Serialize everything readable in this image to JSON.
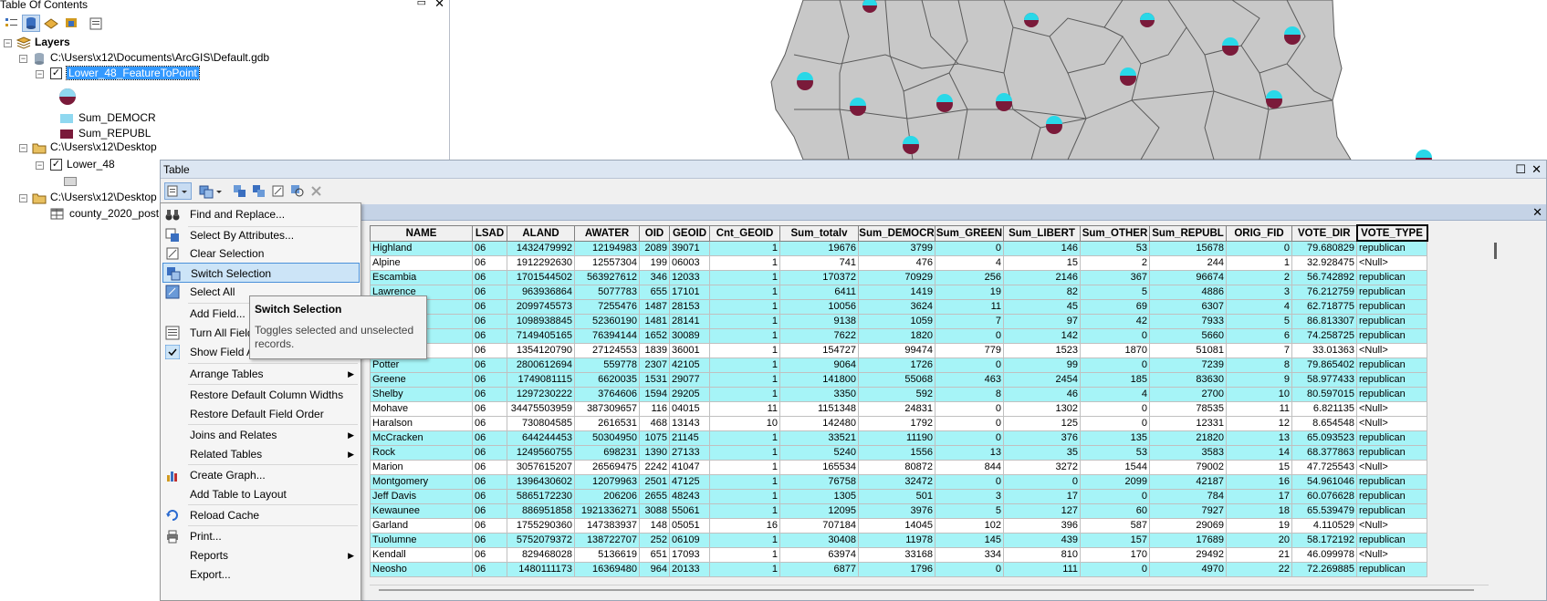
{
  "toc": {
    "title": "Table Of Contents",
    "layers_label": "Layers",
    "gdb_path": "C:\\Users\\x12\\Documents\\ArcGIS\\Default.gdb",
    "feature_layer": "Lower_48_FeatureToPoint",
    "legend_dem": "Sum_DEMOCR",
    "legend_rep": "Sum_REPUBL",
    "folder1": "C:\\Users\\x12\\Desktop",
    "lower48": "Lower_48",
    "folder2": "C:\\Users\\x12\\Desktop",
    "county_table": "county_2020_post",
    "colors": {
      "dem": "#8fd8f0",
      "rep": "#7a1a3a"
    }
  },
  "table_window": {
    "title": "Table"
  },
  "menu": {
    "items": [
      {
        "label": "Find and Replace...",
        "icon": "binoculars-icon"
      },
      {
        "label": "Select By Attributes...",
        "icon": "select-attributes-icon"
      },
      {
        "label": "Clear Selection",
        "icon": "clear-selection-icon"
      },
      {
        "label": "Switch Selection",
        "icon": "switch-selection-icon"
      },
      {
        "label": "Select All",
        "icon": "select-all-icon"
      },
      {
        "label": "Add Field...",
        "icon": ""
      },
      {
        "label": "Turn All Fields On",
        "icon": "fields-on-icon"
      },
      {
        "label": "Show Field Aliases",
        "icon": "checkmark-icon"
      },
      {
        "label": "Arrange Tables",
        "icon": ""
      },
      {
        "label": "Restore Default Column Widths",
        "icon": ""
      },
      {
        "label": "Restore Default Field Order",
        "icon": ""
      },
      {
        "label": "Joins and Relates",
        "icon": ""
      },
      {
        "label": "Related Tables",
        "icon": ""
      },
      {
        "label": "Create Graph...",
        "icon": "graph-icon"
      },
      {
        "label": "Add Table to Layout",
        "icon": ""
      },
      {
        "label": "Reload Cache",
        "icon": "reload-icon"
      },
      {
        "label": "Print...",
        "icon": "printer-icon"
      },
      {
        "label": "Reports",
        "icon": ""
      },
      {
        "label": "Export...",
        "icon": ""
      }
    ]
  },
  "tooltip": {
    "title": "Switch Selection",
    "description": "Toggles selected and unselected records."
  },
  "grid": {
    "columns": [
      "NAME",
      "LSAD",
      "ALAND",
      "AWATER",
      "OID",
      "GEOID",
      "Cnt_GEOID",
      "Sum_totalv",
      "Sum_DEMOCR",
      "Sum_GREEN",
      "Sum_LIBERT",
      "Sum_OTHER",
      "Sum_REPUBL",
      "ORIG_FID",
      "VOTE_DIR",
      "VOTE_TYPE"
    ],
    "rows": [
      {
        "sel": true,
        "c": [
          "Highland",
          "06",
          "1432479992",
          "12194983",
          "2089",
          "39071",
          "1",
          "19676",
          "3799",
          "0",
          "146",
          "53",
          "15678",
          "0",
          "79.680829",
          "republican"
        ]
      },
      {
        "sel": false,
        "c": [
          "Alpine",
          "06",
          "1912292630",
          "12557304",
          "199",
          "06003",
          "1",
          "741",
          "476",
          "4",
          "15",
          "2",
          "244",
          "1",
          "32.928475",
          "<Null>"
        ]
      },
      {
        "sel": true,
        "c": [
          "Escambia",
          "06",
          "1701544502",
          "563927612",
          "346",
          "12033",
          "1",
          "170372",
          "70929",
          "256",
          "2146",
          "367",
          "96674",
          "2",
          "56.742892",
          "republican"
        ]
      },
      {
        "sel": true,
        "c": [
          "Lawrence",
          "06",
          "963936864",
          "5077783",
          "655",
          "17101",
          "1",
          "6411",
          "1419",
          "19",
          "82",
          "5",
          "4886",
          "3",
          "76.212759",
          "republican"
        ]
      },
      {
        "sel": true,
        "c": [
          "",
          "06",
          "2099745573",
          "7255476",
          "1487",
          "28153",
          "1",
          "10056",
          "3624",
          "11",
          "45",
          "69",
          "6307",
          "4",
          "62.718775",
          "republican"
        ]
      },
      {
        "sel": true,
        "c": [
          "",
          "06",
          "1098938845",
          "52360190",
          "1481",
          "28141",
          "1",
          "9138",
          "1059",
          "7",
          "97",
          "42",
          "7933",
          "5",
          "86.813307",
          "republican"
        ]
      },
      {
        "sel": true,
        "c": [
          "",
          "06",
          "7149405165",
          "76394144",
          "1652",
          "30089",
          "1",
          "7622",
          "1820",
          "0",
          "142",
          "0",
          "5660",
          "6",
          "74.258725",
          "republican"
        ]
      },
      {
        "sel": false,
        "c": [
          "",
          "06",
          "1354120790",
          "27124553",
          "1839",
          "36001",
          "1",
          "154727",
          "99474",
          "779",
          "1523",
          "1870",
          "51081",
          "7",
          "33.01363",
          "<Null>"
        ]
      },
      {
        "sel": true,
        "c": [
          "Potter",
          "06",
          "2800612694",
          "559778",
          "2307",
          "42105",
          "1",
          "9064",
          "1726",
          "0",
          "99",
          "0",
          "7239",
          "8",
          "79.865402",
          "republican"
        ]
      },
      {
        "sel": true,
        "c": [
          "Greene",
          "06",
          "1749081115",
          "6620035",
          "1531",
          "29077",
          "1",
          "141800",
          "55068",
          "463",
          "2454",
          "185",
          "83630",
          "9",
          "58.977433",
          "republican"
        ]
      },
      {
        "sel": true,
        "c": [
          "Shelby",
          "06",
          "1297230222",
          "3764606",
          "1594",
          "29205",
          "1",
          "3350",
          "592",
          "8",
          "46",
          "4",
          "2700",
          "10",
          "80.597015",
          "republican"
        ]
      },
      {
        "sel": false,
        "c": [
          "Mohave",
          "06",
          "34475503959",
          "387309657",
          "116",
          "04015",
          "11",
          "1151348",
          "24831",
          "0",
          "1302",
          "0",
          "78535",
          "11",
          "6.821135",
          "<Null>"
        ]
      },
      {
        "sel": false,
        "c": [
          "Haralson",
          "06",
          "730804585",
          "2616531",
          "468",
          "13143",
          "10",
          "142480",
          "1792",
          "0",
          "125",
          "0",
          "12331",
          "12",
          "8.654548",
          "<Null>"
        ]
      },
      {
        "sel": true,
        "c": [
          "McCracken",
          "06",
          "644244453",
          "50304950",
          "1075",
          "21145",
          "1",
          "33521",
          "11190",
          "0",
          "376",
          "135",
          "21820",
          "13",
          "65.093523",
          "republican"
        ]
      },
      {
        "sel": true,
        "c": [
          "Rock",
          "06",
          "1249560755",
          "698231",
          "1390",
          "27133",
          "1",
          "5240",
          "1556",
          "13",
          "35",
          "53",
          "3583",
          "14",
          "68.377863",
          "republican"
        ]
      },
      {
        "sel": false,
        "c": [
          "Marion",
          "06",
          "3057615207",
          "26569475",
          "2242",
          "41047",
          "1",
          "165534",
          "80872",
          "844",
          "3272",
          "1544",
          "79002",
          "15",
          "47.725543",
          "<Null>"
        ]
      },
      {
        "sel": true,
        "c": [
          "Montgomery",
          "06",
          "1396430602",
          "12079963",
          "2501",
          "47125",
          "1",
          "76758",
          "32472",
          "0",
          "0",
          "2099",
          "42187",
          "16",
          "54.961046",
          "republican"
        ]
      },
      {
        "sel": true,
        "c": [
          "Jeff Davis",
          "06",
          "5865172230",
          "206206",
          "2655",
          "48243",
          "1",
          "1305",
          "501",
          "3",
          "17",
          "0",
          "784",
          "17",
          "60.076628",
          "republican"
        ]
      },
      {
        "sel": true,
        "c": [
          "Kewaunee",
          "06",
          "886951858",
          "1921336271",
          "3088",
          "55061",
          "1",
          "12095",
          "3976",
          "5",
          "127",
          "60",
          "7927",
          "18",
          "65.539479",
          "republican"
        ]
      },
      {
        "sel": false,
        "c": [
          "Garland",
          "06",
          "1755290360",
          "147383937",
          "148",
          "05051",
          "16",
          "707184",
          "14045",
          "102",
          "396",
          "587",
          "29069",
          "19",
          "4.110529",
          "<Null>"
        ]
      },
      {
        "sel": true,
        "c": [
          "Tuolumne",
          "06",
          "5752079372",
          "138722707",
          "252",
          "06109",
          "1",
          "30408",
          "11978",
          "145",
          "439",
          "157",
          "17689",
          "20",
          "58.172192",
          "republican"
        ]
      },
      {
        "sel": false,
        "c": [
          "Kendall",
          "06",
          "829468028",
          "5136619",
          "651",
          "17093",
          "1",
          "63974",
          "33168",
          "334",
          "810",
          "170",
          "29492",
          "21",
          "46.099978",
          "<Null>"
        ]
      },
      {
        "sel": true,
        "c": [
          "Neosho",
          "06",
          "1480111173",
          "16369480",
          "964",
          "20133",
          "1",
          "6877",
          "1796",
          "0",
          "111",
          "0",
          "4970",
          "22",
          "72.269885",
          "republican"
        ]
      }
    ]
  }
}
